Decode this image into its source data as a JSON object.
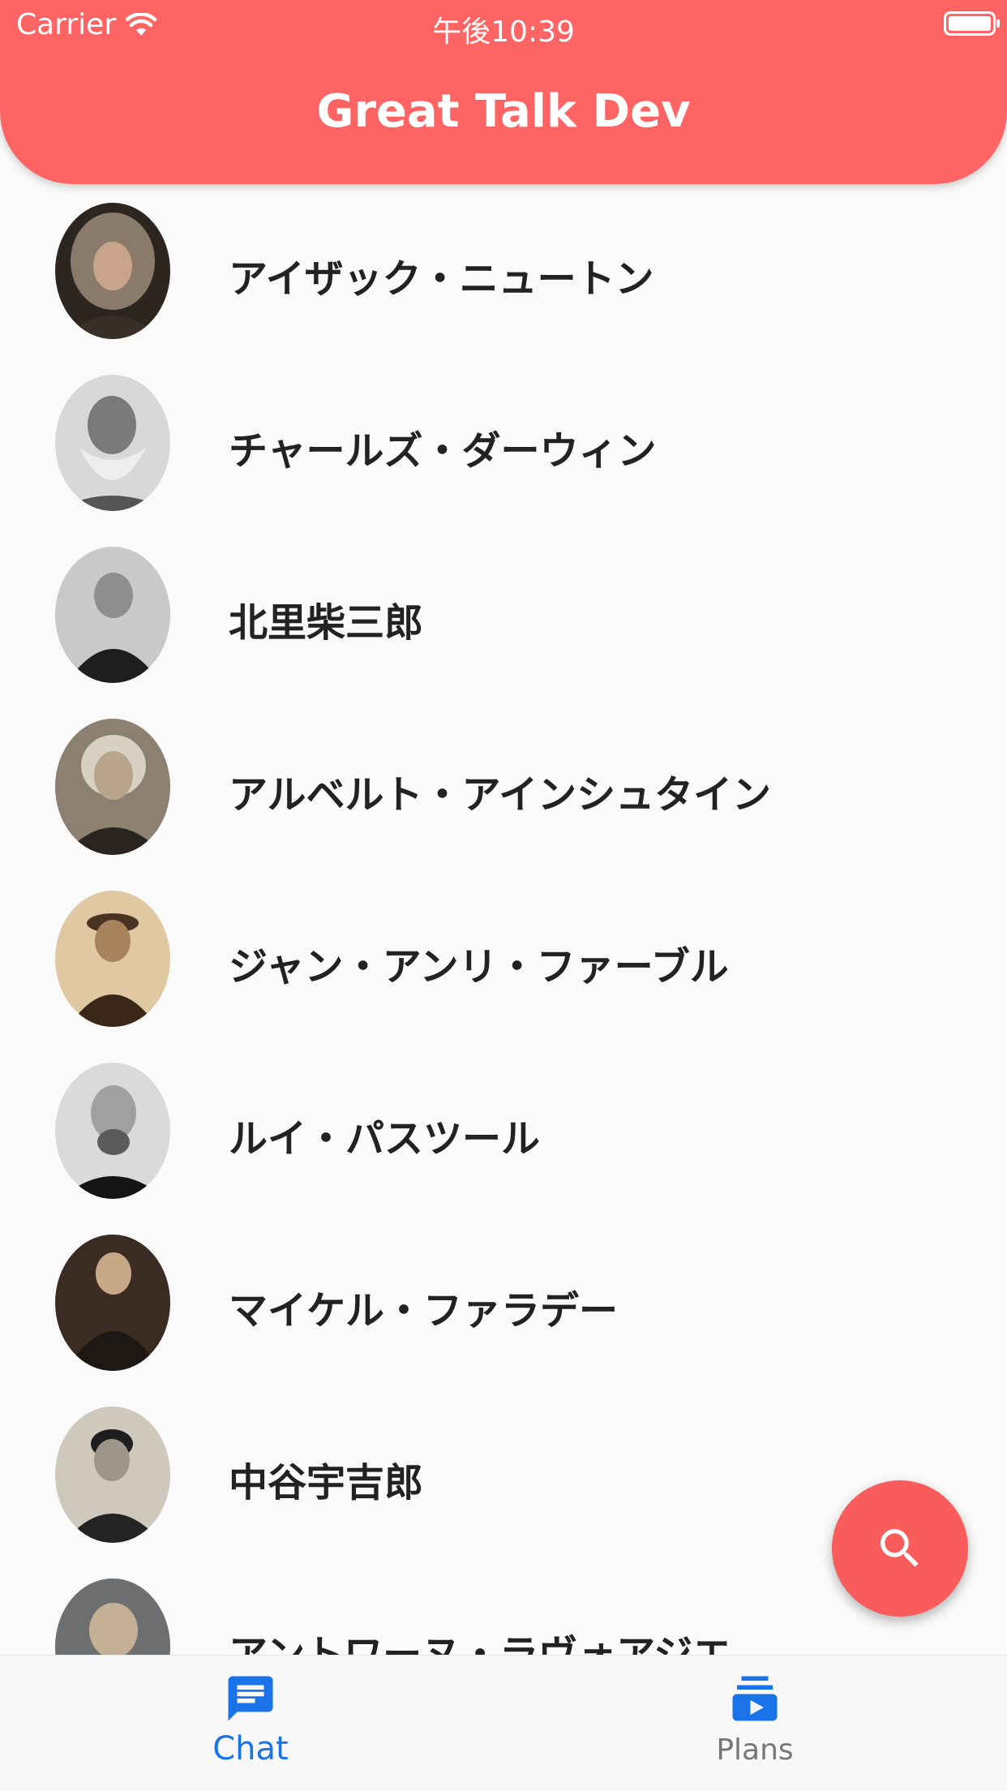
{
  "status_bar": {
    "carrier": "Carrier",
    "time": "午後10:39"
  },
  "app_bar": {
    "title": "Great Talk Dev"
  },
  "colors": {
    "primary": "#ff6464",
    "fab": "#fa5b5b",
    "nav_active": "#1a73e8",
    "nav_inactive": "#777777"
  },
  "people": [
    {
      "name": "アイザック・ニュートン"
    },
    {
      "name": "チャールズ・ダーウィン"
    },
    {
      "name": "北里柴三郎"
    },
    {
      "name": "アルベルト・アインシュタイン"
    },
    {
      "name": "ジャン・アンリ・ファーブル"
    },
    {
      "name": "ルイ・パスツール"
    },
    {
      "name": "マイケル・ファラデー"
    },
    {
      "name": "中谷宇吉郎"
    },
    {
      "name": "アントワーヌ・ラヴォアジエ"
    }
  ],
  "fab": {
    "icon": "search-icon"
  },
  "bottom_nav": {
    "items": [
      {
        "label": "Chat",
        "icon": "chat-icon",
        "active": true
      },
      {
        "label": "Plans",
        "icon": "subscriptions-icon",
        "active": false
      }
    ]
  }
}
